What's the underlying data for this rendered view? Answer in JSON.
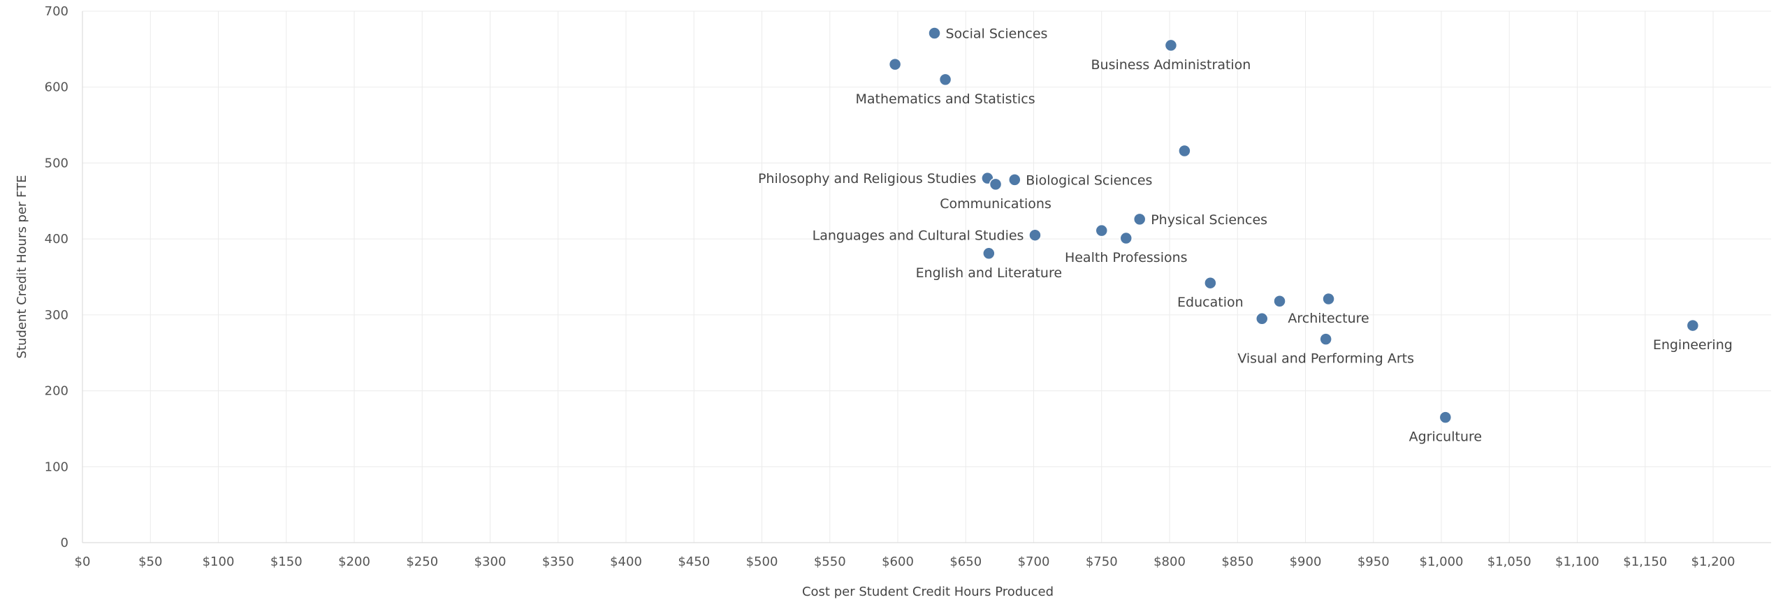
{
  "chart_data": {
    "type": "scatter",
    "xlabel": "Cost per Student Credit Hours Produced",
    "ylabel": "Student Credit Hours per FTE",
    "xlim": [
      0,
      1240
    ],
    "ylim": [
      0,
      700
    ],
    "x_ticks": [
      0,
      50,
      100,
      150,
      200,
      250,
      300,
      350,
      400,
      450,
      500,
      550,
      600,
      650,
      700,
      750,
      800,
      850,
      900,
      950,
      1000,
      1050,
      1100,
      1150,
      1200
    ],
    "x_tick_labels": [
      "$0",
      "$50",
      "$100",
      "$150",
      "$200",
      "$250",
      "$300",
      "$350",
      "$400",
      "$450",
      "$500",
      "$550",
      "$600",
      "$650",
      "$700",
      "$750",
      "$800",
      "$850",
      "$900",
      "$950",
      "$1,000",
      "$1,050",
      "$1,100",
      "$1,150",
      "$1,200"
    ],
    "y_ticks": [
      0,
      100,
      200,
      300,
      400,
      500,
      600,
      700
    ],
    "y_tick_labels": [
      "0",
      "100",
      "200",
      "300",
      "400",
      "500",
      "600",
      "700"
    ],
    "grid": true,
    "point_color": "#4e79a7",
    "points": [
      {
        "x": 627,
        "y": 671,
        "label": "Social Sciences",
        "label_pos": "right"
      },
      {
        "x": 801,
        "y": 655,
        "label": "Business Administration",
        "label_pos": "below"
      },
      {
        "x": 598,
        "y": 630,
        "label": "",
        "label_pos": "none"
      },
      {
        "x": 635,
        "y": 610,
        "label": "Mathematics and Statistics",
        "label_pos": "below"
      },
      {
        "x": 811,
        "y": 516,
        "label": "",
        "label_pos": "none"
      },
      {
        "x": 666,
        "y": 480,
        "label": "Philosophy and Religious Studies",
        "label_pos": "left"
      },
      {
        "x": 686,
        "y": 478,
        "label": "Biological Sciences",
        "label_pos": "right"
      },
      {
        "x": 672,
        "y": 472,
        "label": "Communications",
        "label_pos": "below"
      },
      {
        "x": 778,
        "y": 426,
        "label": "Physical Sciences",
        "label_pos": "right"
      },
      {
        "x": 750,
        "y": 411,
        "label": "",
        "label_pos": "none"
      },
      {
        "x": 701,
        "y": 405,
        "label": "Languages and Cultural Studies",
        "label_pos": "left"
      },
      {
        "x": 768,
        "y": 401,
        "label": "Health Professions",
        "label_pos": "below"
      },
      {
        "x": 667,
        "y": 381,
        "label": "English and Literature",
        "label_pos": "below"
      },
      {
        "x": 830,
        "y": 342,
        "label": "Education",
        "label_pos": "below"
      },
      {
        "x": 917,
        "y": 321,
        "label": "Architecture",
        "label_pos": "below"
      },
      {
        "x": 881,
        "y": 318,
        "label": "",
        "label_pos": "none"
      },
      {
        "x": 868,
        "y": 295,
        "label": "",
        "label_pos": "none"
      },
      {
        "x": 1185,
        "y": 286,
        "label": "Engineering",
        "label_pos": "below"
      },
      {
        "x": 915,
        "y": 268,
        "label": "Visual and Performing Arts",
        "label_pos": "below"
      },
      {
        "x": 1003,
        "y": 165,
        "label": "Agriculture",
        "label_pos": "below"
      }
    ]
  }
}
